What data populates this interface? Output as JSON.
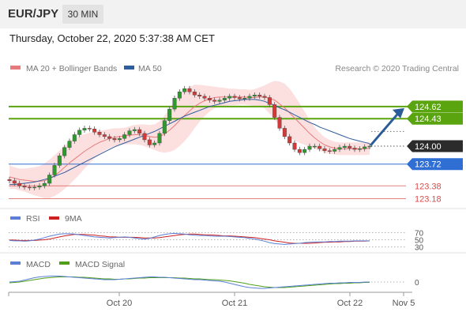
{
  "header": {
    "pair": "EUR/JPY",
    "timeframe": "30 MIN",
    "datetime": "Thursday, October 22, 2020 5:37:38 AM CET"
  },
  "legend": {
    "ma20": "MA 20 + Bollinger Bands",
    "ma50": "MA 50",
    "credit": "Research © 2020 Trading Central"
  },
  "colors": {
    "ma20": "#e77a7a",
    "ma50": "#2f5d9e",
    "bollinger_fill": "#fbd5d5",
    "resistance": "#5aa50f",
    "support": "#2f6fd4",
    "support_minor": "#d94c4c",
    "arrow": "#2b5c9a",
    "rsi": "#5b7fd6",
    "rsi_ma": "#cc2222",
    "macd": "#5b7fd6",
    "macd_signal": "#4f9f1a"
  },
  "chart_data": {
    "type": "candlestick",
    "instrument": "EUR/JPY",
    "interval": "30 MIN",
    "ylim": [
      123.05,
      125.05
    ],
    "x_ticks": [
      "Oct 20",
      "Oct 21",
      "Oct 22",
      "Nov 5"
    ],
    "price_tag": {
      "label": "124.00",
      "value": 124.0
    },
    "levels": [
      {
        "label": "124.62",
        "value": 124.62,
        "kind": "resistance"
      },
      {
        "label": "124.43",
        "value": 124.43,
        "kind": "resistance"
      },
      {
        "label": "123.72",
        "value": 123.72,
        "kind": "support"
      },
      {
        "label": "123.38",
        "value": 123.38,
        "kind": "support_minor"
      },
      {
        "label": "123.18",
        "value": 123.18,
        "kind": "support_minor"
      }
    ],
    "closes": [
      123.46,
      123.42,
      123.38,
      123.36,
      123.35,
      123.36,
      123.38,
      123.42,
      123.55,
      123.7,
      123.85,
      123.98,
      124.08,
      124.18,
      124.25,
      124.28,
      124.27,
      124.22,
      124.18,
      124.15,
      124.12,
      124.1,
      124.12,
      124.18,
      124.24,
      124.26,
      124.2,
      124.1,
      124.02,
      124.05,
      124.2,
      124.4,
      124.58,
      124.75,
      124.85,
      124.9,
      124.85,
      124.8,
      124.78,
      124.75,
      124.72,
      124.7,
      124.72,
      124.75,
      124.78,
      124.76,
      124.74,
      124.75,
      124.78,
      124.8,
      124.78,
      124.76,
      124.65,
      124.45,
      124.28,
      124.15,
      124.05,
      123.95,
      123.9,
      123.95,
      124.0,
      124.0,
      123.96,
      123.93,
      123.92,
      123.95,
      123.98,
      124.0,
      123.97,
      123.95,
      123.96,
      123.99,
      124.0
    ],
    "ma20": [
      123.52,
      123.5,
      123.48,
      123.47,
      123.46,
      123.45,
      123.45,
      123.46,
      123.49,
      123.54,
      123.6,
      123.67,
      123.74,
      123.8,
      123.86,
      123.92,
      123.97,
      124.02,
      124.06,
      124.09,
      124.12,
      124.14,
      124.15,
      124.16,
      124.17,
      124.18,
      124.18,
      124.17,
      124.15,
      124.14,
      124.15,
      124.19,
      124.25,
      124.32,
      124.4,
      124.48,
      124.55,
      124.62,
      124.67,
      124.71,
      124.74,
      124.76,
      124.77,
      124.77,
      124.77,
      124.77,
      124.77,
      124.77,
      124.76,
      124.76,
      124.77,
      124.77,
      124.75,
      124.72,
      124.66,
      124.6,
      124.52,
      124.44,
      124.36,
      124.28,
      124.2,
      124.13,
      124.07,
      124.02,
      123.99,
      123.97,
      123.96,
      123.96,
      123.96,
      123.96,
      123.96,
      123.96,
      123.97
    ],
    "ma50": [
      123.4,
      123.4,
      123.41,
      123.42,
      123.43,
      123.44,
      123.46,
      123.48,
      123.5,
      123.53,
      123.56,
      123.59,
      123.63,
      123.67,
      123.71,
      123.75,
      123.79,
      123.83,
      123.87,
      123.91,
      123.95,
      123.99,
      124.02,
      124.05,
      124.08,
      124.11,
      124.14,
      124.17,
      124.2,
      124.23,
      124.27,
      124.31,
      124.35,
      124.39,
      124.43,
      124.47,
      124.5,
      124.53,
      124.56,
      124.59,
      124.62,
      124.64,
      124.66,
      124.68,
      124.7,
      124.71,
      124.72,
      124.73,
      124.73,
      124.73,
      124.72,
      124.7,
      124.67,
      124.64,
      124.6,
      124.57,
      124.53,
      124.49,
      124.45,
      124.41,
      124.37,
      124.34,
      124.3,
      124.27,
      124.24,
      124.21,
      124.18,
      124.15,
      124.12,
      124.1,
      124.08,
      124.06,
      124.04
    ],
    "bb_half_width": [
      0.18,
      0.17,
      0.17,
      0.18,
      0.2,
      0.22,
      0.24,
      0.27,
      0.3,
      0.32,
      0.33,
      0.34,
      0.34,
      0.32,
      0.3,
      0.27,
      0.24,
      0.21,
      0.18,
      0.16,
      0.15,
      0.14,
      0.13,
      0.13,
      0.14,
      0.15,
      0.16,
      0.17,
      0.18,
      0.2,
      0.24,
      0.29,
      0.34,
      0.38,
      0.4,
      0.4,
      0.38,
      0.34,
      0.29,
      0.24,
      0.2,
      0.17,
      0.15,
      0.14,
      0.13,
      0.13,
      0.12,
      0.12,
      0.12,
      0.13,
      0.15,
      0.18,
      0.24,
      0.3,
      0.35,
      0.38,
      0.38,
      0.35,
      0.31,
      0.26,
      0.21,
      0.17,
      0.14,
      0.12,
      0.11,
      0.1,
      0.1,
      0.1,
      0.1,
      0.1,
      0.1,
      0.1,
      0.1
    ],
    "forecast": {
      "from": 124.0,
      "to": 124.62
    },
    "rsi": {
      "label": "RSI",
      "ma_label": "9MA",
      "levels": [
        {
          "label": "70",
          "value": 70
        },
        {
          "label": "50",
          "value": 50
        },
        {
          "label": "30",
          "value": 30
        }
      ],
      "ylim": [
        20,
        80
      ],
      "values": [
        48,
        47,
        47,
        46,
        47,
        49,
        52,
        56,
        60,
        63,
        66,
        67,
        67,
        66,
        64,
        62,
        60,
        58,
        57,
        56,
        55,
        56,
        57,
        58,
        57,
        55,
        53,
        52,
        54,
        58,
        62,
        65,
        67,
        68,
        67,
        66,
        64,
        63,
        62,
        62,
        61,
        60,
        60,
        60,
        59,
        58,
        57,
        56,
        54,
        52,
        49,
        46,
        42,
        39,
        38,
        37,
        38,
        39,
        40,
        42,
        43,
        44,
        44,
        44,
        45,
        45,
        46,
        46,
        46,
        47,
        47,
        47,
        47
      ],
      "ma_values": [
        49,
        49,
        48,
        48,
        48,
        48,
        49,
        50,
        52,
        55,
        58,
        61,
        63,
        65,
        65,
        65,
        64,
        63,
        61,
        60,
        58,
        58,
        57,
        57,
        57,
        57,
        56,
        55,
        55,
        55,
        56,
        58,
        60,
        62,
        64,
        65,
        66,
        66,
        65,
        64,
        64,
        63,
        62,
        61,
        61,
        60,
        59,
        58,
        57,
        56,
        54,
        52,
        50,
        47,
        45,
        43,
        41,
        40,
        40,
        40,
        40,
        41,
        42,
        43,
        43,
        44,
        44,
        45,
        45,
        46,
        46,
        46,
        47
      ]
    },
    "macd": {
      "label": "MACD",
      "signal_label": "MACD Signal",
      "zero_label": "0",
      "ylim": [
        -0.3,
        0.3
      ],
      "values": [
        0.0,
        0.01,
        0.02,
        0.05,
        0.08,
        0.11,
        0.13,
        0.14,
        0.15,
        0.15,
        0.15,
        0.14,
        0.13,
        0.12,
        0.11,
        0.1,
        0.09,
        0.08,
        0.07,
        0.06,
        0.06,
        0.06,
        0.07,
        0.08,
        0.09,
        0.1,
        0.11,
        0.12,
        0.13,
        0.13,
        0.12,
        0.12,
        0.11,
        0.1,
        0.09,
        0.08,
        0.07,
        0.06,
        0.06,
        0.05,
        0.04,
        0.03,
        0.02,
        0.0,
        -0.03,
        -0.06,
        -0.09,
        -0.12,
        -0.14,
        -0.15,
        -0.16,
        -0.16,
        -0.15,
        -0.14,
        -0.13,
        -0.12,
        -0.11,
        -0.1,
        -0.09,
        -0.08,
        -0.07,
        -0.06,
        -0.05,
        -0.04,
        -0.03,
        -0.03,
        -0.02,
        -0.02,
        -0.01,
        -0.01,
        -0.01,
        0.0,
        0.0
      ],
      "signal_values": [
        -0.02,
        -0.01,
        0.0,
        0.02,
        0.04,
        0.06,
        0.08,
        0.1,
        0.11,
        0.12,
        0.13,
        0.13,
        0.13,
        0.13,
        0.12,
        0.12,
        0.11,
        0.1,
        0.09,
        0.08,
        0.08,
        0.07,
        0.07,
        0.08,
        0.08,
        0.09,
        0.1,
        0.1,
        0.11,
        0.11,
        0.11,
        0.11,
        0.11,
        0.11,
        0.1,
        0.1,
        0.09,
        0.08,
        0.08,
        0.07,
        0.06,
        0.06,
        0.05,
        0.04,
        0.03,
        0.01,
        -0.01,
        -0.03,
        -0.06,
        -0.08,
        -0.1,
        -0.12,
        -0.13,
        -0.14,
        -0.14,
        -0.14,
        -0.13,
        -0.12,
        -0.11,
        -0.1,
        -0.09,
        -0.08,
        -0.07,
        -0.06,
        -0.05,
        -0.04,
        -0.04,
        -0.03,
        -0.03,
        -0.02,
        -0.02,
        -0.01,
        -0.01
      ]
    }
  }
}
